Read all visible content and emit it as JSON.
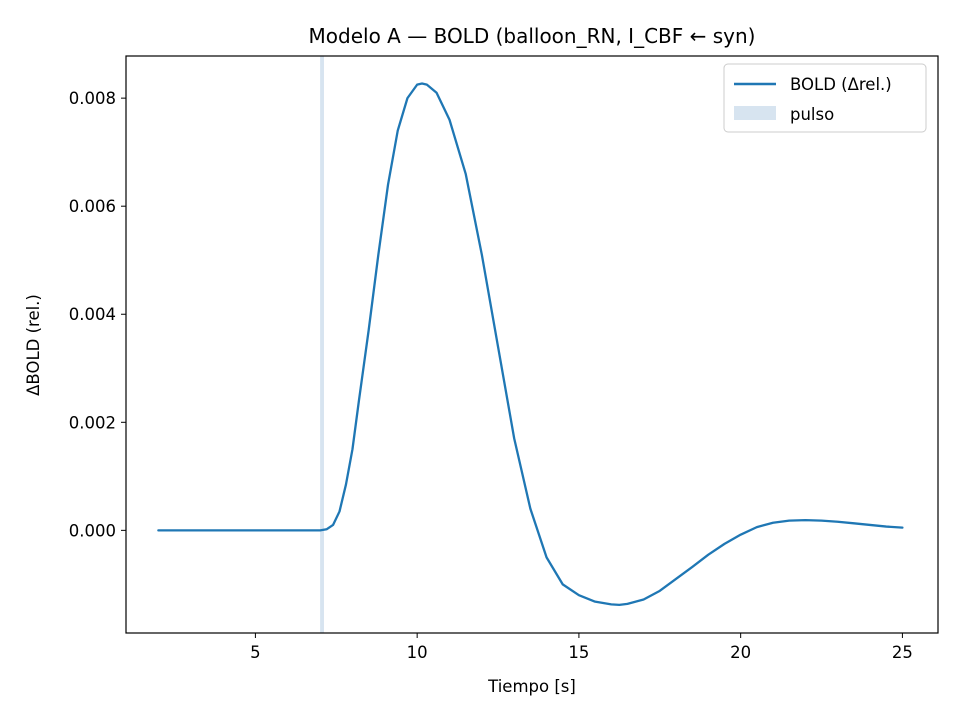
{
  "chart_data": {
    "type": "line",
    "title": "Modelo A — BOLD (balloon_RN, I_CBF ← syn)",
    "xlabel": "Tiempo [s]",
    "ylabel": "ΔBOLD (rel.)",
    "xlim": [
      1.0,
      26.1
    ],
    "ylim": [
      -0.0019,
      0.00878
    ],
    "xticks": [
      5,
      10,
      15,
      20,
      25
    ],
    "xtick_labels": [
      "5",
      "10",
      "15",
      "20",
      "25"
    ],
    "yticks": [
      0.0,
      0.002,
      0.004,
      0.006,
      0.008
    ],
    "ytick_labels": [
      "0.000",
      "0.002",
      "0.004",
      "0.006",
      "0.008"
    ],
    "grid": false,
    "legend_position": "top-right",
    "series": [
      {
        "name": "BOLD (Δrel.)",
        "color": "#1f77b4",
        "points": [
          [
            2.0,
            0.0
          ],
          [
            3.0,
            0.0
          ],
          [
            4.0,
            0.0
          ],
          [
            5.0,
            0.0
          ],
          [
            6.0,
            0.0
          ],
          [
            7.0,
            0.0
          ],
          [
            7.2,
            2e-05
          ],
          [
            7.4,
            0.0001
          ],
          [
            7.6,
            0.00035
          ],
          [
            7.8,
            0.00085
          ],
          [
            8.0,
            0.0015
          ],
          [
            8.2,
            0.0024
          ],
          [
            8.5,
            0.0037
          ],
          [
            8.8,
            0.0051
          ],
          [
            9.1,
            0.0064
          ],
          [
            9.4,
            0.0074
          ],
          [
            9.7,
            0.008
          ],
          [
            10.0,
            0.00825
          ],
          [
            10.15,
            0.00827
          ],
          [
            10.3,
            0.00825
          ],
          [
            10.6,
            0.0081
          ],
          [
            11.0,
            0.0076
          ],
          [
            11.5,
            0.0066
          ],
          [
            12.0,
            0.0051
          ],
          [
            12.5,
            0.0034
          ],
          [
            13.0,
            0.0017
          ],
          [
            13.5,
            0.0004
          ],
          [
            14.0,
            -0.0005
          ],
          [
            14.5,
            -0.001
          ],
          [
            15.0,
            -0.0012
          ],
          [
            15.5,
            -0.00132
          ],
          [
            16.0,
            -0.00137
          ],
          [
            16.25,
            -0.00138
          ],
          [
            16.5,
            -0.00136
          ],
          [
            17.0,
            -0.00128
          ],
          [
            17.5,
            -0.00112
          ],
          [
            18.0,
            -0.0009
          ],
          [
            18.5,
            -0.00068
          ],
          [
            19.0,
            -0.00045
          ],
          [
            19.5,
            -0.00025
          ],
          [
            20.0,
            -8e-05
          ],
          [
            20.5,
            6e-05
          ],
          [
            21.0,
            0.00014
          ],
          [
            21.5,
            0.00018
          ],
          [
            22.0,
            0.00019
          ],
          [
            22.5,
            0.00018
          ],
          [
            23.0,
            0.00016
          ],
          [
            23.5,
            0.00013
          ],
          [
            24.0,
            0.0001
          ],
          [
            24.5,
            7e-05
          ],
          [
            25.0,
            5e-05
          ]
        ]
      }
    ],
    "pulse": {
      "name": "pulso",
      "start": 7.0,
      "end": 7.12,
      "color": "#c6d9ea"
    }
  }
}
